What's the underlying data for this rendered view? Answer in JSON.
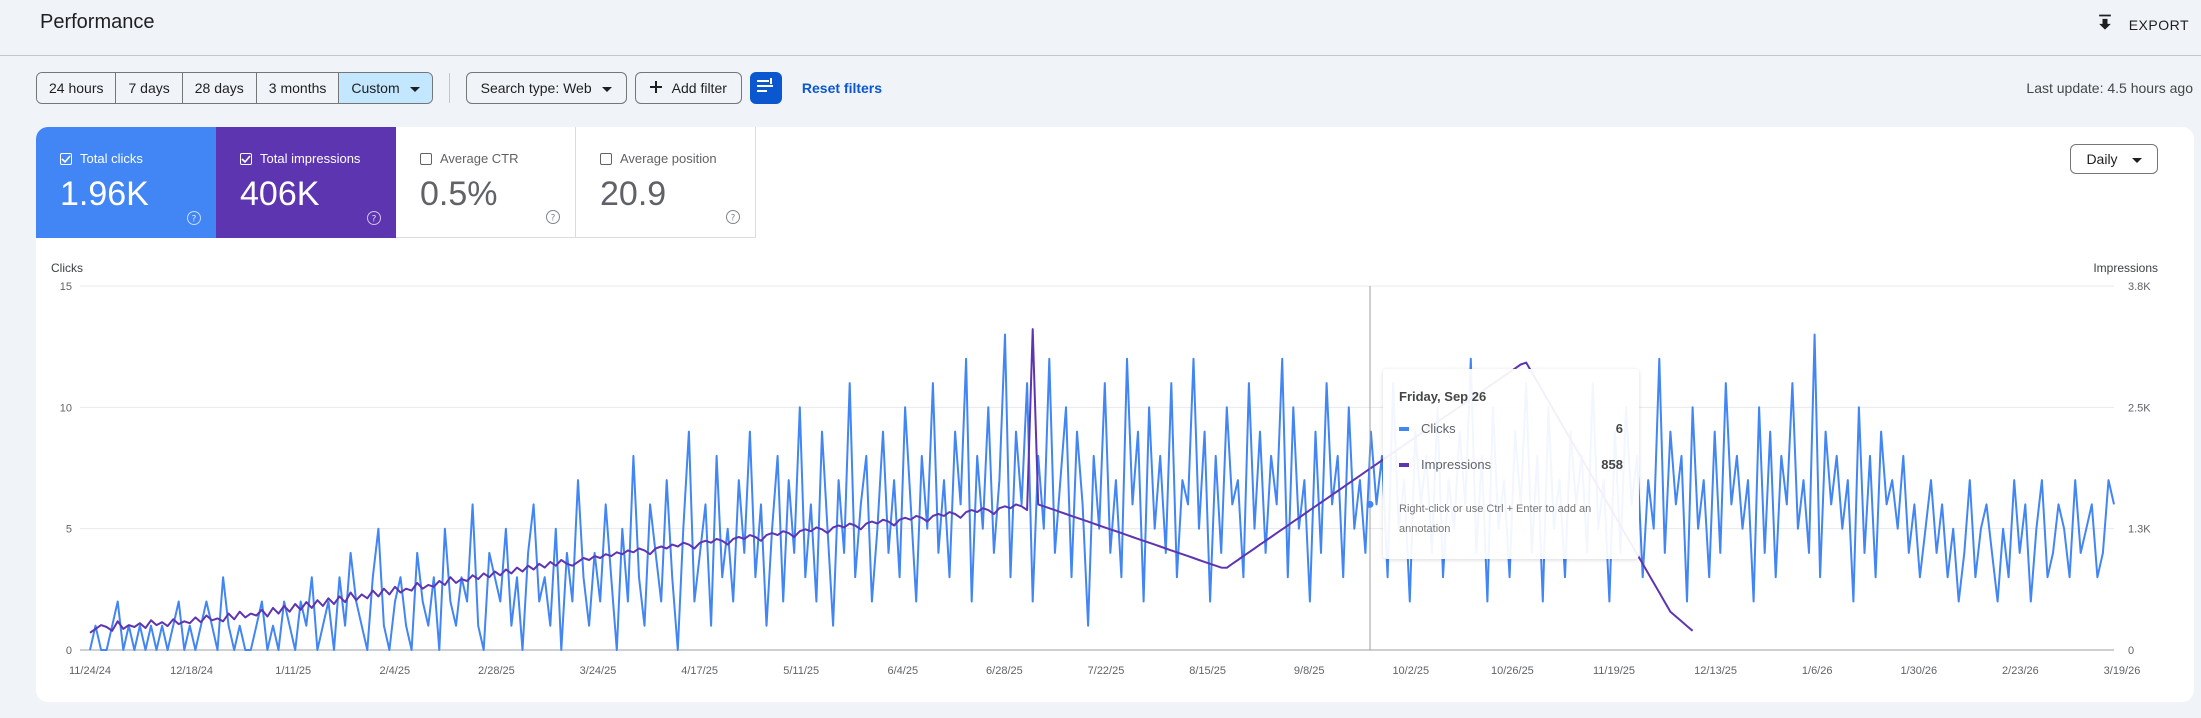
{
  "header": {
    "title": "Performance",
    "export_label": "EXPORT"
  },
  "filters": {
    "ranges": [
      "24 hours",
      "7 days",
      "28 days",
      "3 months",
      "Custom"
    ],
    "search_type": "Search type: Web",
    "add_filter": "Add filter",
    "reset": "Reset filters",
    "last_update": "Last update: 4.5 hours ago"
  },
  "metrics": [
    {
      "label": "Total clicks",
      "value": "1.96K",
      "checked": true
    },
    {
      "label": "Total impressions",
      "value": "406K",
      "checked": true
    },
    {
      "label": "Average CTR",
      "value": "0.5%",
      "checked": false
    },
    {
      "label": "Average position",
      "value": "20.9",
      "checked": false
    }
  ],
  "granularity": "Daily",
  "colors": {
    "clicks": "#4285f4",
    "impressions": "#5e35b1",
    "accent": "#0b57d0",
    "selected_range": "#c2e7ff"
  },
  "chart_data": {
    "type": "line",
    "xlabel": "",
    "ylabel_left": "Clicks",
    "ylabel_right": "Impressions",
    "y_left_ticks": [
      "0",
      "5",
      "10",
      "15"
    ],
    "y_left_range": [
      0,
      15
    ],
    "y_right_ticks": [
      "0",
      "1.3K",
      "2.5K",
      "3.8K"
    ],
    "y_right_range": [
      0,
      3800
    ],
    "x_tick_labels": [
      "11/24/24",
      "12/18/24",
      "1/11/25",
      "2/4/25",
      "2/28/25",
      "3/24/25",
      "4/17/25",
      "5/11/25",
      "6/4/25",
      "6/28/25",
      "7/22/25",
      "8/15/25",
      "9/8/25",
      "10/2/25",
      "10/26/25",
      "11/19/25",
      "12/13/25",
      "1/6/26",
      "1/30/26",
      "2/23/26",
      "3/19/26"
    ],
    "grid": true,
    "series": [
      {
        "name": "Clicks",
        "axis": "left",
        "values": [
          0,
          1,
          0,
          0,
          1,
          2,
          0,
          1,
          0,
          1,
          0,
          1,
          0,
          1,
          0,
          1,
          2,
          0,
          1,
          0,
          1,
          2,
          1,
          0,
          3,
          1,
          0,
          1,
          0,
          0,
          1,
          2,
          0,
          1,
          0,
          2,
          1,
          0,
          2,
          1,
          3,
          0,
          1,
          2,
          0,
          3,
          1,
          4,
          2,
          1,
          0,
          3,
          5,
          1,
          0,
          2,
          3,
          1,
          0,
          4,
          2,
          1,
          3,
          0,
          5,
          2,
          1,
          3,
          2,
          6,
          1,
          0,
          4,
          3,
          2,
          5,
          1,
          3,
          0,
          4,
          6,
          2,
          3,
          1,
          5,
          0,
          4,
          2,
          7,
          3,
          1,
          4,
          2,
          6,
          3,
          0,
          5,
          2,
          8,
          3,
          1,
          6,
          4,
          2,
          7,
          3,
          0,
          5,
          9,
          2,
          4,
          6,
          1,
          8,
          3,
          5,
          2,
          7,
          4,
          9,
          3,
          6,
          1,
          5,
          8,
          2,
          7,
          4,
          10,
          3,
          6,
          2,
          9,
          5,
          1,
          7,
          4,
          11,
          3,
          6,
          8,
          2,
          5,
          9,
          4,
          7,
          3,
          10,
          6,
          2,
          8,
          5,
          11,
          4,
          7,
          3,
          9,
          6,
          12,
          2,
          8,
          5,
          10,
          4,
          7,
          13,
          3,
          9,
          6,
          11,
          2,
          8,
          5,
          12,
          4,
          7,
          10,
          3,
          9,
          6,
          1,
          8,
          5,
          11,
          4,
          7,
          3,
          12,
          6,
          9,
          2,
          10,
          5,
          8,
          4,
          11,
          3,
          7,
          6,
          12,
          5,
          9,
          2,
          8,
          4,
          10,
          6,
          7,
          3,
          11,
          5,
          9,
          4,
          8,
          6,
          12,
          3,
          10,
          5,
          7,
          2,
          9,
          4,
          11,
          6,
          8,
          3,
          10,
          5,
          7,
          4,
          9,
          6,
          8,
          3,
          11,
          5,
          7,
          2,
          9,
          6,
          8,
          4,
          10,
          3,
          7,
          5,
          9,
          6,
          12,
          4,
          8,
          2,
          10,
          5,
          7,
          3,
          9,
          6,
          11,
          4,
          8,
          2,
          10,
          5,
          7,
          3,
          9,
          6,
          8,
          4,
          11,
          5,
          7,
          2,
          9,
          4,
          10,
          6,
          8,
          3,
          7,
          5,
          12,
          4,
          9,
          6,
          8,
          2,
          10,
          5,
          7,
          3,
          9,
          4,
          11,
          6,
          8,
          5,
          7,
          2,
          10,
          4,
          9,
          3,
          8,
          6,
          11,
          5,
          7,
          4,
          13,
          3,
          9,
          6,
          8,
          5,
          7,
          2,
          10,
          4,
          8,
          3,
          9,
          6,
          7,
          5,
          8,
          4,
          6,
          3,
          5,
          7,
          4,
          6,
          3,
          5,
          2,
          4,
          7,
          3,
          5,
          6,
          4,
          2,
          5,
          3,
          7,
          4,
          6,
          2,
          5,
          7,
          3,
          4,
          6,
          5,
          3,
          7,
          4,
          5,
          6,
          3,
          4,
          7,
          6
        ]
      },
      {
        "name": "Impressions",
        "axis": "right",
        "values": [
          180,
          220,
          260,
          240,
          200,
          300,
          220,
          260,
          240,
          280,
          230,
          310,
          260,
          290,
          250,
          320,
          270,
          300,
          280,
          340,
          290,
          360,
          310,
          330,
          300,
          380,
          320,
          400,
          340,
          380,
          360,
          420,
          350,
          440,
          380,
          460,
          400,
          480,
          420,
          500,
          440,
          520,
          460,
          540,
          480,
          560,
          500,
          600,
          520,
          580,
          540,
          620,
          560,
          640,
          580,
          660,
          600,
          640,
          620,
          700,
          640,
          680,
          660,
          720,
          680,
          760,
          700,
          740,
          720,
          780,
          740,
          800,
          760,
          820,
          780,
          840,
          800,
          860,
          820,
          880,
          840,
          900,
          860,
          920,
          880,
          940,
          900,
          880,
          920,
          960,
          940,
          980,
          960,
          1000,
          980,
          1020,
          1000,
          1040,
          1020,
          1060,
          1040,
          1000,
          1060,
          1080,
          1060,
          1100,
          1080,
          1120,
          1100,
          1060,
          1120,
          1140,
          1120,
          1160,
          1140,
          1100,
          1160,
          1180,
          1160,
          1200,
          1180,
          1140,
          1200,
          1220,
          1200,
          1240,
          1220,
          1180,
          1240,
          1260,
          1240,
          1280,
          1260,
          1220,
          1280,
          1300,
          1280,
          1320,
          1300,
          1260,
          1320,
          1340,
          1320,
          1360,
          1340,
          1300,
          1360,
          1380,
          1360,
          1400,
          1380,
          1340,
          1400,
          1420,
          1400,
          1440,
          1420,
          1380,
          1440,
          1460,
          1440,
          1480,
          1460,
          1420,
          1480,
          1500,
          1480,
          1520,
          1500,
          1460,
          3350,
          1520,
          1500,
          1480,
          1460,
          1440,
          1420,
          1400,
          1380,
          1360,
          1340,
          1320,
          1300,
          1280,
          1260,
          1240,
          1220,
          1200,
          1180,
          1160,
          1140,
          1120,
          1100,
          1080,
          1060,
          1040,
          1020,
          1000,
          980,
          960,
          940,
          920,
          900,
          880,
          860,
          858,
          900,
          940,
          980,
          1020,
          1060,
          1100,
          1140,
          1180,
          1220,
          1260,
          1300,
          1340,
          1380,
          1420,
          1460,
          1500,
          1540,
          1580,
          1620,
          1660,
          1700,
          1740,
          1780,
          1820,
          1860,
          1900,
          1940,
          1980,
          2020,
          2060,
          2100,
          2140,
          2180,
          2220,
          2260,
          2300,
          2340,
          2380,
          2420,
          2460,
          2500,
          2540,
          2580,
          2620,
          2660,
          2700,
          2740,
          2780,
          2820,
          2860,
          2900,
          2940,
          2980,
          3000,
          2900,
          2800,
          2700,
          2600,
          2500,
          2400,
          2300,
          2200,
          2100,
          2000,
          1900,
          1800,
          1700,
          1600,
          1500,
          1400,
          1300,
          1200,
          1100,
          1000,
          900,
          800,
          700,
          600,
          500,
          400,
          350,
          300,
          250,
          200
        ]
      }
    ],
    "tooltip": {
      "date": "Friday, Sep 26",
      "rows": [
        {
          "name": "Clicks",
          "value": "6"
        },
        {
          "name": "Impressions",
          "value": "858"
        }
      ],
      "note": "Right-click or use Ctrl + Enter to add an annotation"
    }
  }
}
